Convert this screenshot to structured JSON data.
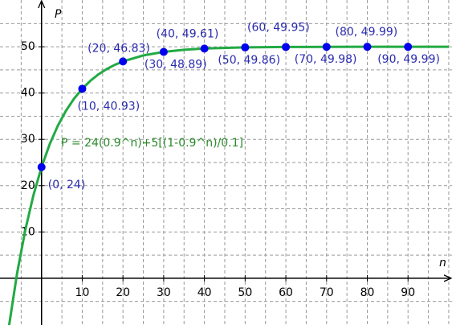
{
  "chart_data": {
    "type": "function-plot",
    "x_label": "n",
    "y_label": "P",
    "annotation": "P  = 24(0.9^n)+5[(1-0.9^n)/0.1]",
    "xlim": [
      -10.2,
      100.8
    ],
    "ylim": [
      -10.1,
      60.1
    ],
    "xticks": [
      10,
      20,
      30,
      40,
      50,
      60,
      70,
      80,
      90
    ],
    "yticks": [
      10,
      20,
      30,
      40,
      50
    ],
    "xgrid": [
      -5,
      5,
      10,
      15,
      20,
      25,
      30,
      35,
      40,
      45,
      50,
      55,
      60,
      65,
      70,
      75,
      80,
      85,
      90,
      95,
      100
    ],
    "ygrid": [
      -5,
      5,
      10,
      15,
      20,
      25,
      30,
      35,
      40,
      45,
      50,
      55
    ],
    "curve": {
      "color": "#22aa44",
      "x": [
        -8,
        -6,
        -4,
        -2,
        0,
        2,
        4,
        6,
        8,
        10,
        12,
        14,
        16,
        18,
        20,
        25,
        30,
        35,
        40,
        50,
        60,
        70,
        80,
        90,
        100
      ],
      "values": [
        -10.4,
        1.08,
        10.37,
        17.9,
        24,
        28.94,
        32.94,
        36.18,
        38.81,
        40.93,
        42.66,
        44.05,
        45.18,
        46.1,
        46.84,
        48.13,
        48.9,
        49.35,
        49.62,
        49.87,
        49.95,
        49.98,
        49.99,
        50,
        50
      ]
    },
    "points": {
      "color": "#0000ee",
      "label_color": "#2a2ab0",
      "x": [
        0,
        10,
        20,
        30,
        40,
        50,
        60,
        70,
        80,
        90
      ],
      "values": [
        24,
        40.93,
        46.83,
        48.89,
        49.61,
        49.86,
        49.95,
        49.98,
        49.99,
        49.99
      ],
      "value_labels": [
        "(0, 24)",
        "(10, 40.93)",
        "(20, 46.83)",
        "(30, 48.89)",
        "(40, 49.61)",
        "(50, 49.86)",
        "(60, 49.95)",
        "(70, 49.98)",
        "(80, 49.99)",
        "(90, 49.99)"
      ]
    }
  }
}
